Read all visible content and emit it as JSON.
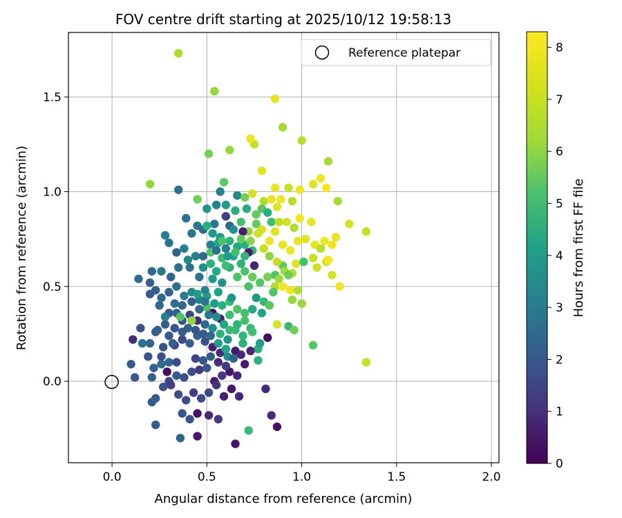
{
  "chart_data": {
    "type": "scatter",
    "title": "FOV centre drift starting at 2025/10/12 19:58:13",
    "xlabel": "Angular distance from reference (arcmin)",
    "ylabel": "Rotation from reference (arcmin)",
    "xlim": [
      -0.23,
      2.04
    ],
    "ylim": [
      -0.43,
      1.84
    ],
    "xticks": [
      0.0,
      0.5,
      1.0,
      1.5,
      2.0
    ],
    "xtick_labels": [
      "0.0",
      "0.5",
      "1.0",
      "1.5",
      "2.0"
    ],
    "yticks": [
      0.0,
      0.5,
      1.0,
      1.5
    ],
    "ytick_labels": [
      "0.0",
      "0.5",
      "1.0",
      "1.5"
    ],
    "grid": true,
    "legend": {
      "position": "top-right",
      "label": "Reference platepar",
      "marker": "open-circle"
    },
    "reference_point": {
      "x": 0.0,
      "y": 0.0,
      "label": "Reference platepar"
    },
    "colorbar": {
      "label": "Hours from first FF file",
      "colormap": "viridis",
      "range": [
        0,
        8.3
      ],
      "ticks": [
        0,
        1,
        2,
        3,
        4,
        5,
        6,
        7,
        8
      ],
      "tick_labels": [
        "0",
        "1",
        "2",
        "3",
        "4",
        "5",
        "6",
        "7",
        "8"
      ]
    },
    "points": [
      [
        0.35,
        1.73,
        7.3
      ],
      [
        0.54,
        1.53,
        7.0
      ],
      [
        0.86,
        1.49,
        8.0
      ],
      [
        0.2,
        1.04,
        7.0
      ],
      [
        0.9,
        1.34,
        7.2
      ],
      [
        0.75,
        1.25,
        7.6
      ],
      [
        0.73,
        1.28,
        8.1
      ],
      [
        1.0,
        1.27,
        7.4
      ],
      [
        0.51,
        1.2,
        6.5
      ],
      [
        0.62,
        1.22,
        7.0
      ],
      [
        0.79,
        1.11,
        7.9
      ],
      [
        1.14,
        1.16,
        7.2
      ],
      [
        1.1,
        1.07,
        8.1
      ],
      [
        1.06,
        1.04,
        7.9
      ],
      [
        1.13,
        1.02,
        8.2
      ],
      [
        0.86,
        1.02,
        8.0
      ],
      [
        0.93,
        1.02,
        7.6
      ],
      [
        0.99,
        1.01,
        8.1
      ],
      [
        0.35,
        1.01,
        3.1
      ],
      [
        0.59,
        1.05,
        6.2
      ],
      [
        0.57,
        1.0,
        3.6
      ],
      [
        1.19,
        0.95,
        7.2
      ],
      [
        1.25,
        0.83,
        7.8
      ],
      [
        1.34,
        0.79,
        7.6
      ],
      [
        0.45,
        0.96,
        6.5
      ],
      [
        0.66,
        0.98,
        3.9
      ],
      [
        0.7,
        0.97,
        6.5
      ],
      [
        0.74,
        0.99,
        7.8
      ],
      [
        0.8,
        0.95,
        7.3
      ],
      [
        0.84,
        0.96,
        8.0
      ],
      [
        0.89,
        0.96,
        8.1
      ],
      [
        0.95,
        0.95,
        7.4
      ],
      [
        0.99,
        0.86,
        8.2
      ],
      [
        1.05,
        0.84,
        8.0
      ],
      [
        0.87,
        0.92,
        7.9
      ],
      [
        0.79,
        0.91,
        6.1
      ],
      [
        0.92,
        0.84,
        7.7
      ],
      [
        0.96,
        0.81,
        7.3
      ],
      [
        0.55,
        0.93,
        3.6
      ],
      [
        0.6,
        0.93,
        4.6
      ],
      [
        0.65,
        0.9,
        5.2
      ],
      [
        0.5,
        0.91,
        4.3
      ],
      [
        0.54,
        0.83,
        3.3
      ],
      [
        0.6,
        0.87,
        1.5
      ],
      [
        0.62,
        0.82,
        2.7
      ],
      [
        0.68,
        0.84,
        5.8
      ],
      [
        0.72,
        0.79,
        6.9
      ],
      [
        0.76,
        0.83,
        6.3
      ],
      [
        0.79,
        0.8,
        7.8
      ],
      [
        0.83,
        0.74,
        8.1
      ],
      [
        0.86,
        0.79,
        7.9
      ],
      [
        0.9,
        0.72,
        8.0
      ],
      [
        0.94,
        0.69,
        8.1
      ],
      [
        0.98,
        0.74,
        8.0
      ],
      [
        1.02,
        0.75,
        7.9
      ],
      [
        1.07,
        0.72,
        8.0
      ],
      [
        1.1,
        0.7,
        7.4
      ],
      [
        1.12,
        0.74,
        8.1
      ],
      [
        1.16,
        0.72,
        8.1
      ],
      [
        1.18,
        0.76,
        8.0
      ],
      [
        1.13,
        0.63,
        7.7
      ],
      [
        1.14,
        0.64,
        8.2
      ],
      [
        1.06,
        0.65,
        7.6
      ],
      [
        1.08,
        0.6,
        7.7
      ],
      [
        1.16,
        0.56,
        7.8
      ],
      [
        1.2,
        0.5,
        8.1
      ],
      [
        1.34,
        0.1,
        7.6
      ],
      [
        1.06,
        0.19,
        6.1
      ],
      [
        0.39,
        0.86,
        3.1
      ],
      [
        0.42,
        0.78,
        3.3
      ],
      [
        0.45,
        0.82,
        3.3
      ],
      [
        0.48,
        0.8,
        2.9
      ],
      [
        0.52,
        0.72,
        3.5
      ],
      [
        0.56,
        0.73,
        4.9
      ],
      [
        0.62,
        0.74,
        5.3
      ],
      [
        0.66,
        0.71,
        5.0
      ],
      [
        0.7,
        0.72,
        5.2
      ],
      [
        0.74,
        0.69,
        5.4
      ],
      [
        0.28,
        0.77,
        3.5
      ],
      [
        0.3,
        0.73,
        3.2
      ],
      [
        0.34,
        0.68,
        2.5
      ],
      [
        0.38,
        0.7,
        3.6
      ],
      [
        0.4,
        0.64,
        3.9
      ],
      [
        0.44,
        0.66,
        3.5
      ],
      [
        0.48,
        0.6,
        4.2
      ],
      [
        0.52,
        0.62,
        5.3
      ],
      [
        0.55,
        0.58,
        5.0
      ],
      [
        0.58,
        0.65,
        5.7
      ],
      [
        0.62,
        0.6,
        5.2
      ],
      [
        0.66,
        0.55,
        6.0
      ],
      [
        0.7,
        0.58,
        5.9
      ],
      [
        0.74,
        0.55,
        6.4
      ],
      [
        0.78,
        0.52,
        6.1
      ],
      [
        0.82,
        0.55,
        6.6
      ],
      [
        0.86,
        0.5,
        7.3
      ],
      [
        0.9,
        0.5,
        8.2
      ],
      [
        0.94,
        0.48,
        8.1
      ],
      [
        0.98,
        0.48,
        7.3
      ],
      [
        0.26,
        0.58,
        3.3
      ],
      [
        0.21,
        0.58,
        2.8
      ],
      [
        0.14,
        0.54,
        2.9
      ],
      [
        0.2,
        0.52,
        2.5
      ],
      [
        0.23,
        0.48,
        2.5
      ],
      [
        0.26,
        0.44,
        2.8
      ],
      [
        0.3,
        0.47,
        2.6
      ],
      [
        0.34,
        0.5,
        3.1
      ],
      [
        0.38,
        0.45,
        3.5
      ],
      [
        0.42,
        0.47,
        3.8
      ],
      [
        0.46,
        0.43,
        3.9
      ],
      [
        0.5,
        0.45,
        4.6
      ],
      [
        0.54,
        0.41,
        4.5
      ],
      [
        0.58,
        0.4,
        5.3
      ],
      [
        0.62,
        0.42,
        5.6
      ],
      [
        0.66,
        0.38,
        6.0
      ],
      [
        0.7,
        0.36,
        5.8
      ],
      [
        0.74,
        0.38,
        5.0
      ],
      [
        0.2,
        0.46,
        2.3
      ],
      [
        0.25,
        0.4,
        2.8
      ],
      [
        0.3,
        0.36,
        2.3
      ],
      [
        0.34,
        0.36,
        2.6
      ],
      [
        0.37,
        0.32,
        2.2
      ],
      [
        0.41,
        0.35,
        1.7
      ],
      [
        0.45,
        0.32,
        1.1
      ],
      [
        0.49,
        0.3,
        2.7
      ],
      [
        0.53,
        0.28,
        4.0
      ],
      [
        0.57,
        0.25,
        5.3
      ],
      [
        0.61,
        0.22,
        4.4
      ],
      [
        0.65,
        0.27,
        5.6
      ],
      [
        0.69,
        0.24,
        5.4
      ],
      [
        0.73,
        0.28,
        5.5
      ],
      [
        0.77,
        0.17,
        5.2
      ],
      [
        0.82,
        0.23,
        0.3
      ],
      [
        0.87,
        0.3,
        7.8
      ],
      [
        0.15,
        0.28,
        2.1
      ],
      [
        0.2,
        0.2,
        2.7
      ],
      [
        0.23,
        0.26,
        2.4
      ],
      [
        0.27,
        0.18,
        2.2
      ],
      [
        0.3,
        0.24,
        2.3
      ],
      [
        0.33,
        0.19,
        1.6
      ],
      [
        0.37,
        0.22,
        1.8
      ],
      [
        0.41,
        0.2,
        2.5
      ],
      [
        0.45,
        0.24,
        2.7
      ],
      [
        0.49,
        0.21,
        2.0
      ],
      [
        0.53,
        0.18,
        0.7
      ],
      [
        0.57,
        0.15,
        1.1
      ],
      [
        0.61,
        0.13,
        4.1
      ],
      [
        0.65,
        0.16,
        0.6
      ],
      [
        0.69,
        0.2,
        5.3
      ],
      [
        0.73,
        0.16,
        0.9
      ],
      [
        0.77,
        0.11,
        5.3
      ],
      [
        0.11,
        0.22,
        1.1
      ],
      [
        0.1,
        0.09,
        2.4
      ],
      [
        0.21,
        0.02,
        2.6
      ],
      [
        0.22,
        0.07,
        2.6
      ],
      [
        0.26,
        0.09,
        2.9
      ],
      [
        0.29,
        0.05,
        0.3
      ],
      [
        0.3,
        -0.0,
        1.7
      ],
      [
        0.34,
        0.03,
        2.4
      ],
      [
        0.38,
        0.02,
        2.1
      ],
      [
        0.42,
        0.05,
        2.0
      ],
      [
        0.46,
        0.06,
        1.4
      ],
      [
        0.5,
        0.07,
        2.2
      ],
      [
        0.54,
        0.0,
        0.6
      ],
      [
        0.58,
        0.03,
        1.4
      ],
      [
        0.62,
        0.05,
        0.5
      ],
      [
        0.66,
        0.03,
        0.9
      ],
      [
        0.7,
        0.09,
        0.6
      ],
      [
        0.12,
        0.02,
        2.3
      ],
      [
        0.23,
        -0.09,
        2.4
      ],
      [
        0.27,
        -0.03,
        2.1
      ],
      [
        0.31,
        -0.02,
        1.5
      ],
      [
        0.35,
        -0.07,
        2.0
      ],
      [
        0.39,
        -0.1,
        1.9
      ],
      [
        0.43,
        -0.06,
        1.5
      ],
      [
        0.47,
        -0.09,
        1.8
      ],
      [
        0.51,
        -0.06,
        1.8
      ],
      [
        0.55,
        -0.02,
        1.3
      ],
      [
        0.59,
        -0.08,
        0.7
      ],
      [
        0.63,
        -0.04,
        0.5
      ],
      [
        0.67,
        -0.08,
        0.9
      ],
      [
        0.21,
        -0.11,
        2.3
      ],
      [
        0.37,
        -0.17,
        2.2
      ],
      [
        0.41,
        -0.2,
        2.1
      ],
      [
        0.45,
        -0.17,
        0.4
      ],
      [
        0.51,
        -0.18,
        1.0
      ],
      [
        0.56,
        -0.2,
        1.4
      ],
      [
        0.23,
        -0.23,
        2.4
      ],
      [
        0.36,
        -0.3,
        2.7
      ],
      [
        0.45,
        -0.29,
        0.5
      ],
      [
        0.65,
        -0.33,
        0.5
      ],
      [
        0.72,
        -0.26,
        5.6
      ],
      [
        0.81,
        -0.04,
        0.9
      ],
      [
        0.84,
        -0.18,
        1.0
      ],
      [
        0.87,
        -0.24,
        0.4
      ],
      [
        0.53,
        0.36,
        0.3
      ],
      [
        0.57,
        0.33,
        0.8
      ],
      [
        0.69,
        0.79,
        0.7
      ],
      [
        0.72,
        0.68,
        0.7
      ],
      [
        0.75,
        0.61,
        0.8
      ],
      [
        0.36,
        0.34,
        6.1
      ],
      [
        0.42,
        0.32,
        6.9
      ],
      [
        0.5,
        0.39,
        6.0
      ],
      [
        0.63,
        0.44,
        4.3
      ],
      [
        0.8,
        0.42,
        5.6
      ],
      [
        0.86,
        0.56,
        6.0
      ],
      [
        0.9,
        0.61,
        6.2
      ],
      [
        0.95,
        0.43,
        7.0
      ],
      [
        1.0,
        0.41,
        7.0
      ],
      [
        0.93,
        0.29,
        5.6
      ],
      [
        0.96,
        0.27,
        6.5
      ],
      [
        0.71,
        0.91,
        5.1
      ],
      [
        0.76,
        0.88,
        6.3
      ],
      [
        0.82,
        0.89,
        5.2
      ],
      [
        0.84,
        0.84,
        5.7
      ],
      [
        0.88,
        0.84,
        7.5
      ],
      [
        0.58,
        0.52,
        4.2
      ],
      [
        0.62,
        0.35,
        5.7
      ],
      [
        0.56,
        0.47,
        4.8
      ],
      [
        0.64,
        0.66,
        4.9
      ],
      [
        0.68,
        0.62,
        5.3
      ],
      [
        0.72,
        0.5,
        5.9
      ],
      [
        0.76,
        0.44,
        4.4
      ],
      [
        0.79,
        0.36,
        4.9
      ],
      [
        0.83,
        0.4,
        6.2
      ],
      [
        0.5,
        0.82,
        5.2
      ],
      [
        0.53,
        0.78,
        4.5
      ],
      [
        0.57,
        0.76,
        4.4
      ],
      [
        0.6,
        0.7,
        3.6
      ],
      [
        0.64,
        0.8,
        4.1
      ],
      [
        0.41,
        0.6,
        3.2
      ],
      [
        0.46,
        0.55,
        3.0
      ],
      [
        0.49,
        0.48,
        3.7
      ],
      [
        0.53,
        0.54,
        4.4
      ],
      [
        0.6,
        0.61,
        5.7
      ],
      [
        0.31,
        0.55,
        2.7
      ],
      [
        0.35,
        0.6,
        3.0
      ],
      [
        0.33,
        0.41,
        3.1
      ],
      [
        0.37,
        0.4,
        2.8
      ],
      [
        0.42,
        0.42,
        2.5
      ],
      [
        0.46,
        0.38,
        2.9
      ],
      [
        0.51,
        0.35,
        3.3
      ],
      [
        0.55,
        0.34,
        3.9
      ],
      [
        0.59,
        0.3,
        4.9
      ],
      [
        0.62,
        0.27,
        5.6
      ],
      [
        0.66,
        0.3,
        5.3
      ],
      [
        0.7,
        0.32,
        5.8
      ],
      [
        0.74,
        0.26,
        5.8
      ],
      [
        0.78,
        0.2,
        4.6
      ],
      [
        0.4,
        0.28,
        2.6
      ],
      [
        0.44,
        0.27,
        2.2
      ],
      [
        0.48,
        0.25,
        2.4
      ],
      [
        0.52,
        0.24,
        2.8
      ],
      [
        0.56,
        0.2,
        4.6
      ],
      [
        0.6,
        0.17,
        4.9
      ],
      [
        0.64,
        0.12,
        2.6
      ],
      [
        0.68,
        0.14,
        0.9
      ],
      [
        0.24,
        0.27,
        2.5
      ],
      [
        0.28,
        0.3,
        2.5
      ],
      [
        0.33,
        0.28,
        2.1
      ],
      [
        0.37,
        0.26,
        2.3
      ],
      [
        0.3,
        0.1,
        2.8
      ],
      [
        0.34,
        0.1,
        1.9
      ],
      [
        0.44,
        0.12,
        1.7
      ],
      [
        0.48,
        0.11,
        2.2
      ],
      [
        0.52,
        0.13,
        2.3
      ],
      [
        0.56,
        0.1,
        1.0
      ],
      [
        0.6,
        0.08,
        1.4
      ],
      [
        0.16,
        0.2,
        3.1
      ],
      [
        0.19,
        0.13,
        2.2
      ],
      [
        0.26,
        0.13,
        1.9
      ],
      [
        0.28,
        0.34,
        3.5
      ],
      [
        0.32,
        0.2,
        2.6
      ],
      [
        0.45,
        0.46,
        4.6
      ],
      [
        0.49,
        0.42,
        3.3
      ],
      [
        0.48,
        0.66,
        2.8
      ],
      [
        0.52,
        0.68,
        6.0
      ],
      [
        0.55,
        0.69,
        3.2
      ],
      [
        0.58,
        0.74,
        5.9
      ],
      [
        0.61,
        0.66,
        4.5
      ],
      [
        0.65,
        0.68,
        5.8
      ],
      [
        0.68,
        0.75,
        6.3
      ],
      [
        0.7,
        0.66,
        5.4
      ],
      [
        0.73,
        0.74,
        6.8
      ],
      [
        0.77,
        0.78,
        7.7
      ],
      [
        0.8,
        0.7,
        7.6
      ],
      [
        0.83,
        0.66,
        6.9
      ],
      [
        0.87,
        0.63,
        7.6
      ],
      [
        0.91,
        0.58,
        7.1
      ],
      [
        0.97,
        0.62,
        7.9
      ],
      [
        1.01,
        0.63,
        5.8
      ],
      [
        0.95,
        0.57,
        7.3
      ],
      [
        0.88,
        0.54,
        7.1
      ],
      [
        0.85,
        0.47,
        6.0
      ],
      [
        0.93,
        0.56,
        6.4
      ]
    ]
  }
}
